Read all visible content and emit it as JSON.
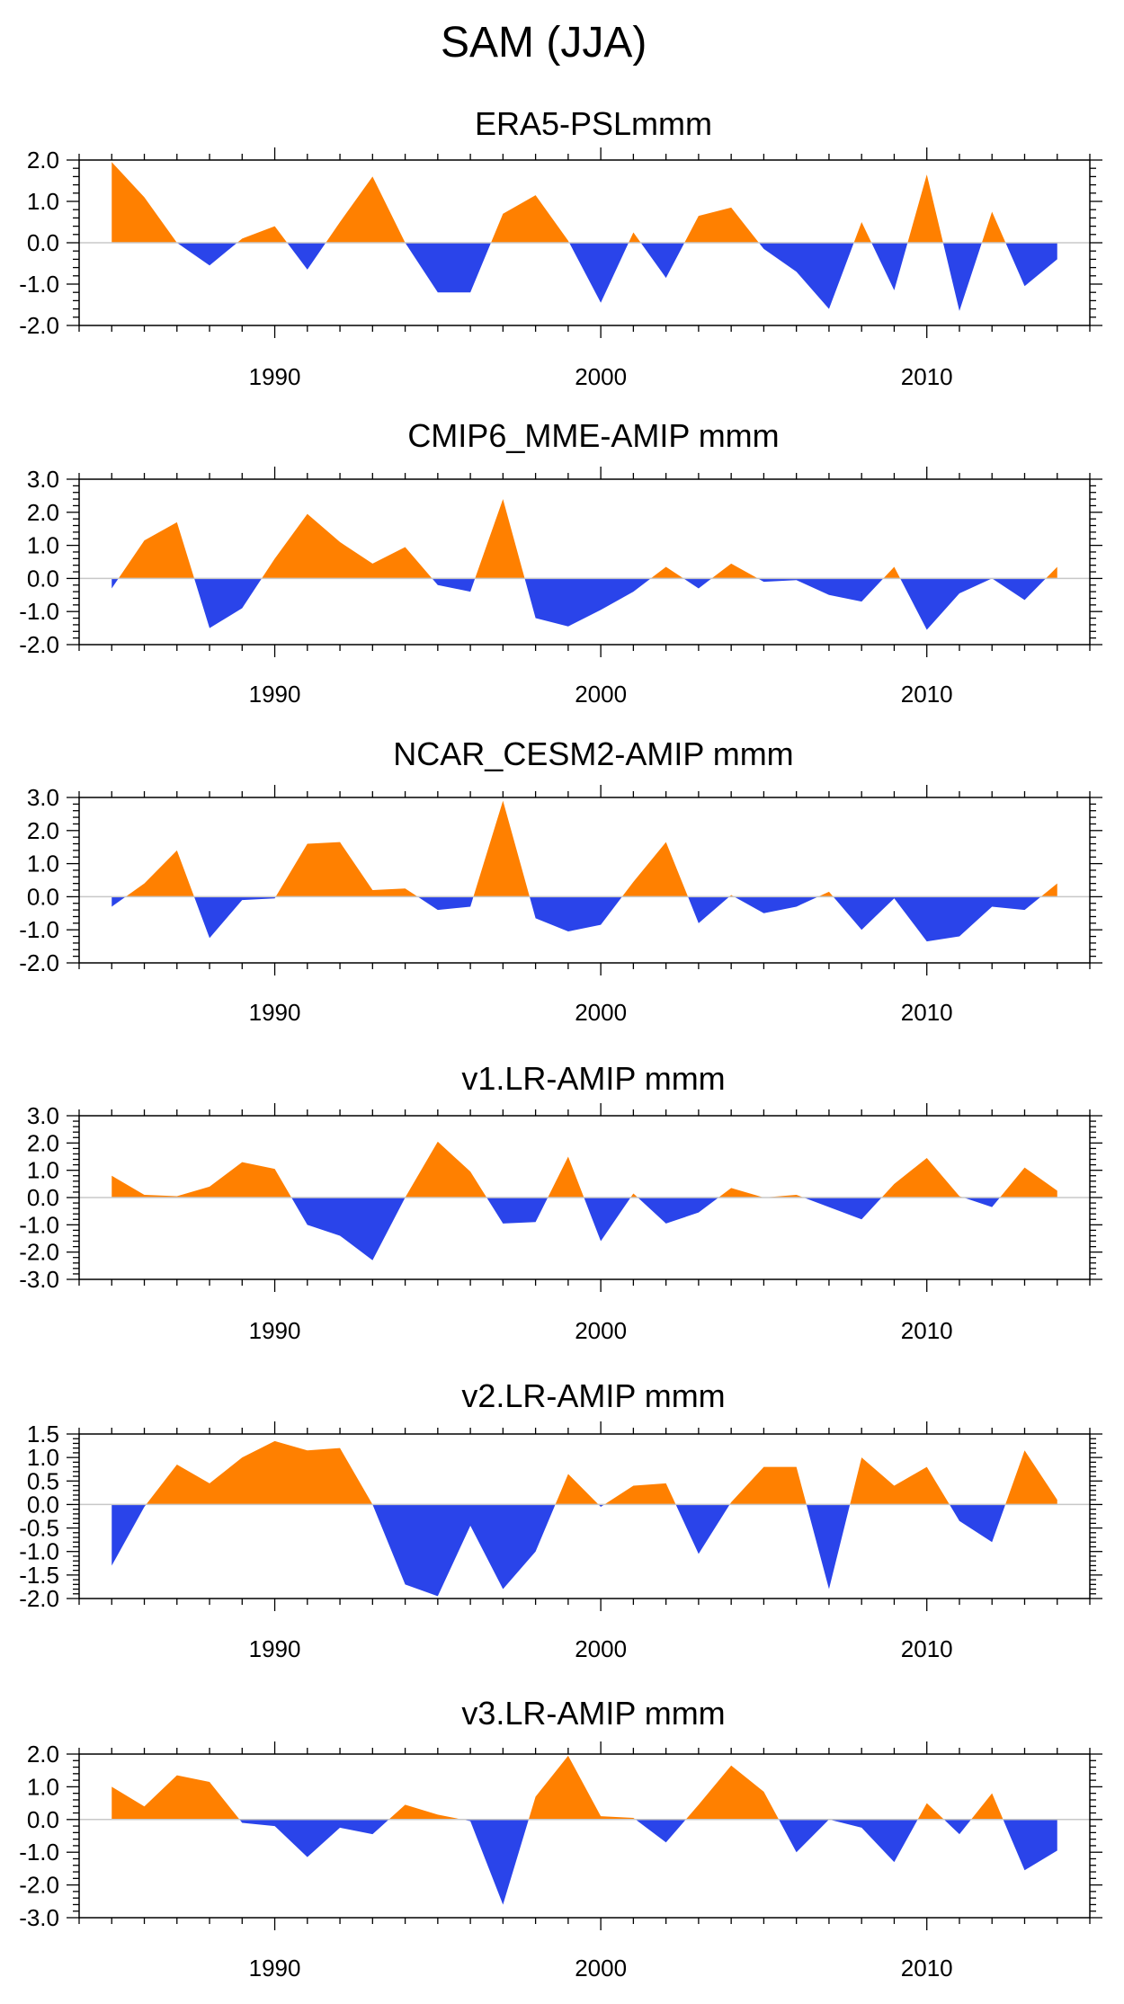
{
  "title": "SAM (JJA)",
  "colors": {
    "positive": "#ff8000",
    "negative": "#2a44ea",
    "axis": "#000000",
    "zero_line": "#c8c8c8"
  },
  "chart_data": [
    {
      "type": "area",
      "title": "ERA5-PSLmmm",
      "xlim": [
        1984,
        2015
      ],
      "ylim": [
        -2.0,
        2.0
      ],
      "yticks": [
        "2.0",
        "1.0",
        "0.0",
        "-1.0",
        "-2.0"
      ],
      "xticks": [
        "1990",
        "2000",
        "2010"
      ],
      "x": [
        1985,
        1986,
        1987,
        1988,
        1989,
        1990,
        1991,
        1992,
        1993,
        1994,
        1995,
        1996,
        1997,
        1998,
        1999,
        2000,
        2001,
        2002,
        2003,
        2004,
        2005,
        2006,
        2007,
        2008,
        2009,
        2010,
        2011,
        2012,
        2013,
        2014
      ],
      "values": [
        1.95,
        1.1,
        0.0,
        -0.55,
        0.1,
        0.4,
        -0.65,
        0.5,
        1.6,
        0.0,
        -1.2,
        -1.2,
        0.7,
        1.15,
        0.05,
        -1.45,
        0.25,
        -0.85,
        0.65,
        0.85,
        -0.15,
        -0.7,
        -1.6,
        0.5,
        -1.15,
        1.65,
        -1.65,
        0.75,
        -1.05,
        -0.4
      ]
    },
    {
      "type": "area",
      "title": "CMIP6_MME-AMIP  mmm",
      "xlim": [
        1984,
        2015
      ],
      "ylim": [
        -2.0,
        3.0
      ],
      "yticks": [
        "3.0",
        "2.0",
        "1.0",
        "0.0",
        "-1.0",
        "-2.0"
      ],
      "xticks": [
        "1990",
        "2000",
        "2010"
      ],
      "x": [
        1985,
        1986,
        1987,
        1988,
        1989,
        1990,
        1991,
        1992,
        1993,
        1994,
        1995,
        1996,
        1997,
        1998,
        1999,
        2000,
        2001,
        2002,
        2003,
        2004,
        2005,
        2006,
        2007,
        2008,
        2009,
        2010,
        2011,
        2012,
        2013,
        2014
      ],
      "values": [
        -0.3,
        1.15,
        1.7,
        -1.5,
        -0.9,
        0.6,
        1.95,
        1.1,
        0.45,
        0.95,
        -0.2,
        -0.4,
        2.4,
        -1.2,
        -1.45,
        -0.95,
        -0.4,
        0.35,
        -0.3,
        0.45,
        -0.1,
        -0.05,
        -0.5,
        -0.7,
        0.35,
        -1.55,
        -0.45,
        0.0,
        -0.65,
        0.35
      ]
    },
    {
      "type": "area",
      "title": "NCAR_CESM2-AMIP  mmm",
      "xlim": [
        1984,
        2015
      ],
      "ylim": [
        -2.0,
        3.0
      ],
      "yticks": [
        "3.0",
        "2.0",
        "1.0",
        "0.0",
        "-1.0",
        "-2.0"
      ],
      "xticks": [
        "1990",
        "2000",
        "2010"
      ],
      "x": [
        1985,
        1986,
        1987,
        1988,
        1989,
        1990,
        1991,
        1992,
        1993,
        1994,
        1995,
        1996,
        1997,
        1998,
        1999,
        2000,
        2001,
        2002,
        2003,
        2004,
        2005,
        2006,
        2007,
        2008,
        2009,
        2010,
        2011,
        2012,
        2013,
        2014
      ],
      "values": [
        -0.3,
        0.4,
        1.4,
        -1.25,
        -0.1,
        -0.05,
        1.6,
        1.65,
        0.2,
        0.25,
        -0.4,
        -0.3,
        2.9,
        -0.65,
        -1.05,
        -0.85,
        0.45,
        1.65,
        -0.8,
        0.05,
        -0.5,
        -0.3,
        0.15,
        -1.0,
        -0.05,
        -1.35,
        -1.2,
        -0.3,
        -0.4,
        0.4
      ]
    },
    {
      "type": "area",
      "title": "v1.LR-AMIP  mmm",
      "xlim": [
        1984,
        2015
      ],
      "ylim": [
        -3.0,
        3.0
      ],
      "yticks": [
        "3.0",
        "2.0",
        "1.0",
        "0.0",
        "-1.0",
        "-2.0",
        "-3.0"
      ],
      "xticks": [
        "1990",
        "2000",
        "2010"
      ],
      "x": [
        1985,
        1986,
        1987,
        1988,
        1989,
        1990,
        1991,
        1992,
        1993,
        1994,
        1995,
        1996,
        1997,
        1998,
        1999,
        2000,
        2001,
        2002,
        2003,
        2004,
        2005,
        2006,
        2007,
        2008,
        2009,
        2010,
        2011,
        2012,
        2013,
        2014
      ],
      "values": [
        0.8,
        0.1,
        0.05,
        0.4,
        1.3,
        1.05,
        -1.0,
        -1.4,
        -2.3,
        0.0,
        2.05,
        0.95,
        -0.95,
        -0.9,
        1.5,
        -1.6,
        0.15,
        -0.95,
        -0.55,
        0.35,
        0.0,
        0.1,
        -0.35,
        -0.8,
        0.5,
        1.45,
        0.05,
        -0.35,
        1.1,
        0.25
      ]
    },
    {
      "type": "area",
      "title": "v2.LR-AMIP  mmm",
      "xlim": [
        1984,
        2015
      ],
      "ylim": [
        -2.0,
        1.5
      ],
      "yticks": [
        "1.5",
        "1.0",
        "0.5",
        "0.0",
        "-0.5",
        "-1.0",
        "-1.5",
        "-2.0"
      ],
      "xticks": [
        "1990",
        "2000",
        "2010"
      ],
      "x": [
        1985,
        1986,
        1987,
        1988,
        1989,
        1990,
        1991,
        1992,
        1993,
        1994,
        1995,
        1996,
        1997,
        1998,
        1999,
        2000,
        2001,
        2002,
        2003,
        2004,
        2005,
        2006,
        2007,
        2008,
        2009,
        2010,
        2011,
        2012,
        2013,
        2014
      ],
      "values": [
        -1.3,
        -0.05,
        0.85,
        0.45,
        1.0,
        1.35,
        1.15,
        1.2,
        0.0,
        -1.7,
        -1.95,
        -0.45,
        -1.8,
        -1.0,
        0.65,
        -0.05,
        0.4,
        0.45,
        -1.05,
        0.05,
        0.8,
        0.8,
        -1.8,
        1.0,
        0.4,
        0.8,
        -0.35,
        -0.8,
        1.15,
        0.1
      ]
    },
    {
      "type": "area",
      "title": "v3.LR-AMIP  mmm",
      "xlim": [
        1984,
        2015
      ],
      "ylim": [
        -3.0,
        2.0
      ],
      "yticks": [
        "2.0",
        "1.0",
        "0.0",
        "-1.0",
        "-2.0",
        "-3.0"
      ],
      "xticks": [
        "1990",
        "2000",
        "2010"
      ],
      "x": [
        1985,
        1986,
        1987,
        1988,
        1989,
        1990,
        1991,
        1992,
        1993,
        1994,
        1995,
        1996,
        1997,
        1998,
        1999,
        2000,
        2001,
        2002,
        2003,
        2004,
        2005,
        2006,
        2007,
        2008,
        2009,
        2010,
        2011,
        2012,
        2013,
        2014
      ],
      "values": [
        1.0,
        0.4,
        1.35,
        1.15,
        -0.1,
        -0.2,
        -1.15,
        -0.25,
        -0.45,
        0.45,
        0.15,
        -0.05,
        -2.6,
        0.7,
        1.95,
        0.1,
        0.05,
        -0.7,
        0.45,
        1.65,
        0.85,
        -1.0,
        0.0,
        -0.25,
        -1.3,
        0.5,
        -0.45,
        0.8,
        -1.55,
        -0.95
      ]
    }
  ]
}
